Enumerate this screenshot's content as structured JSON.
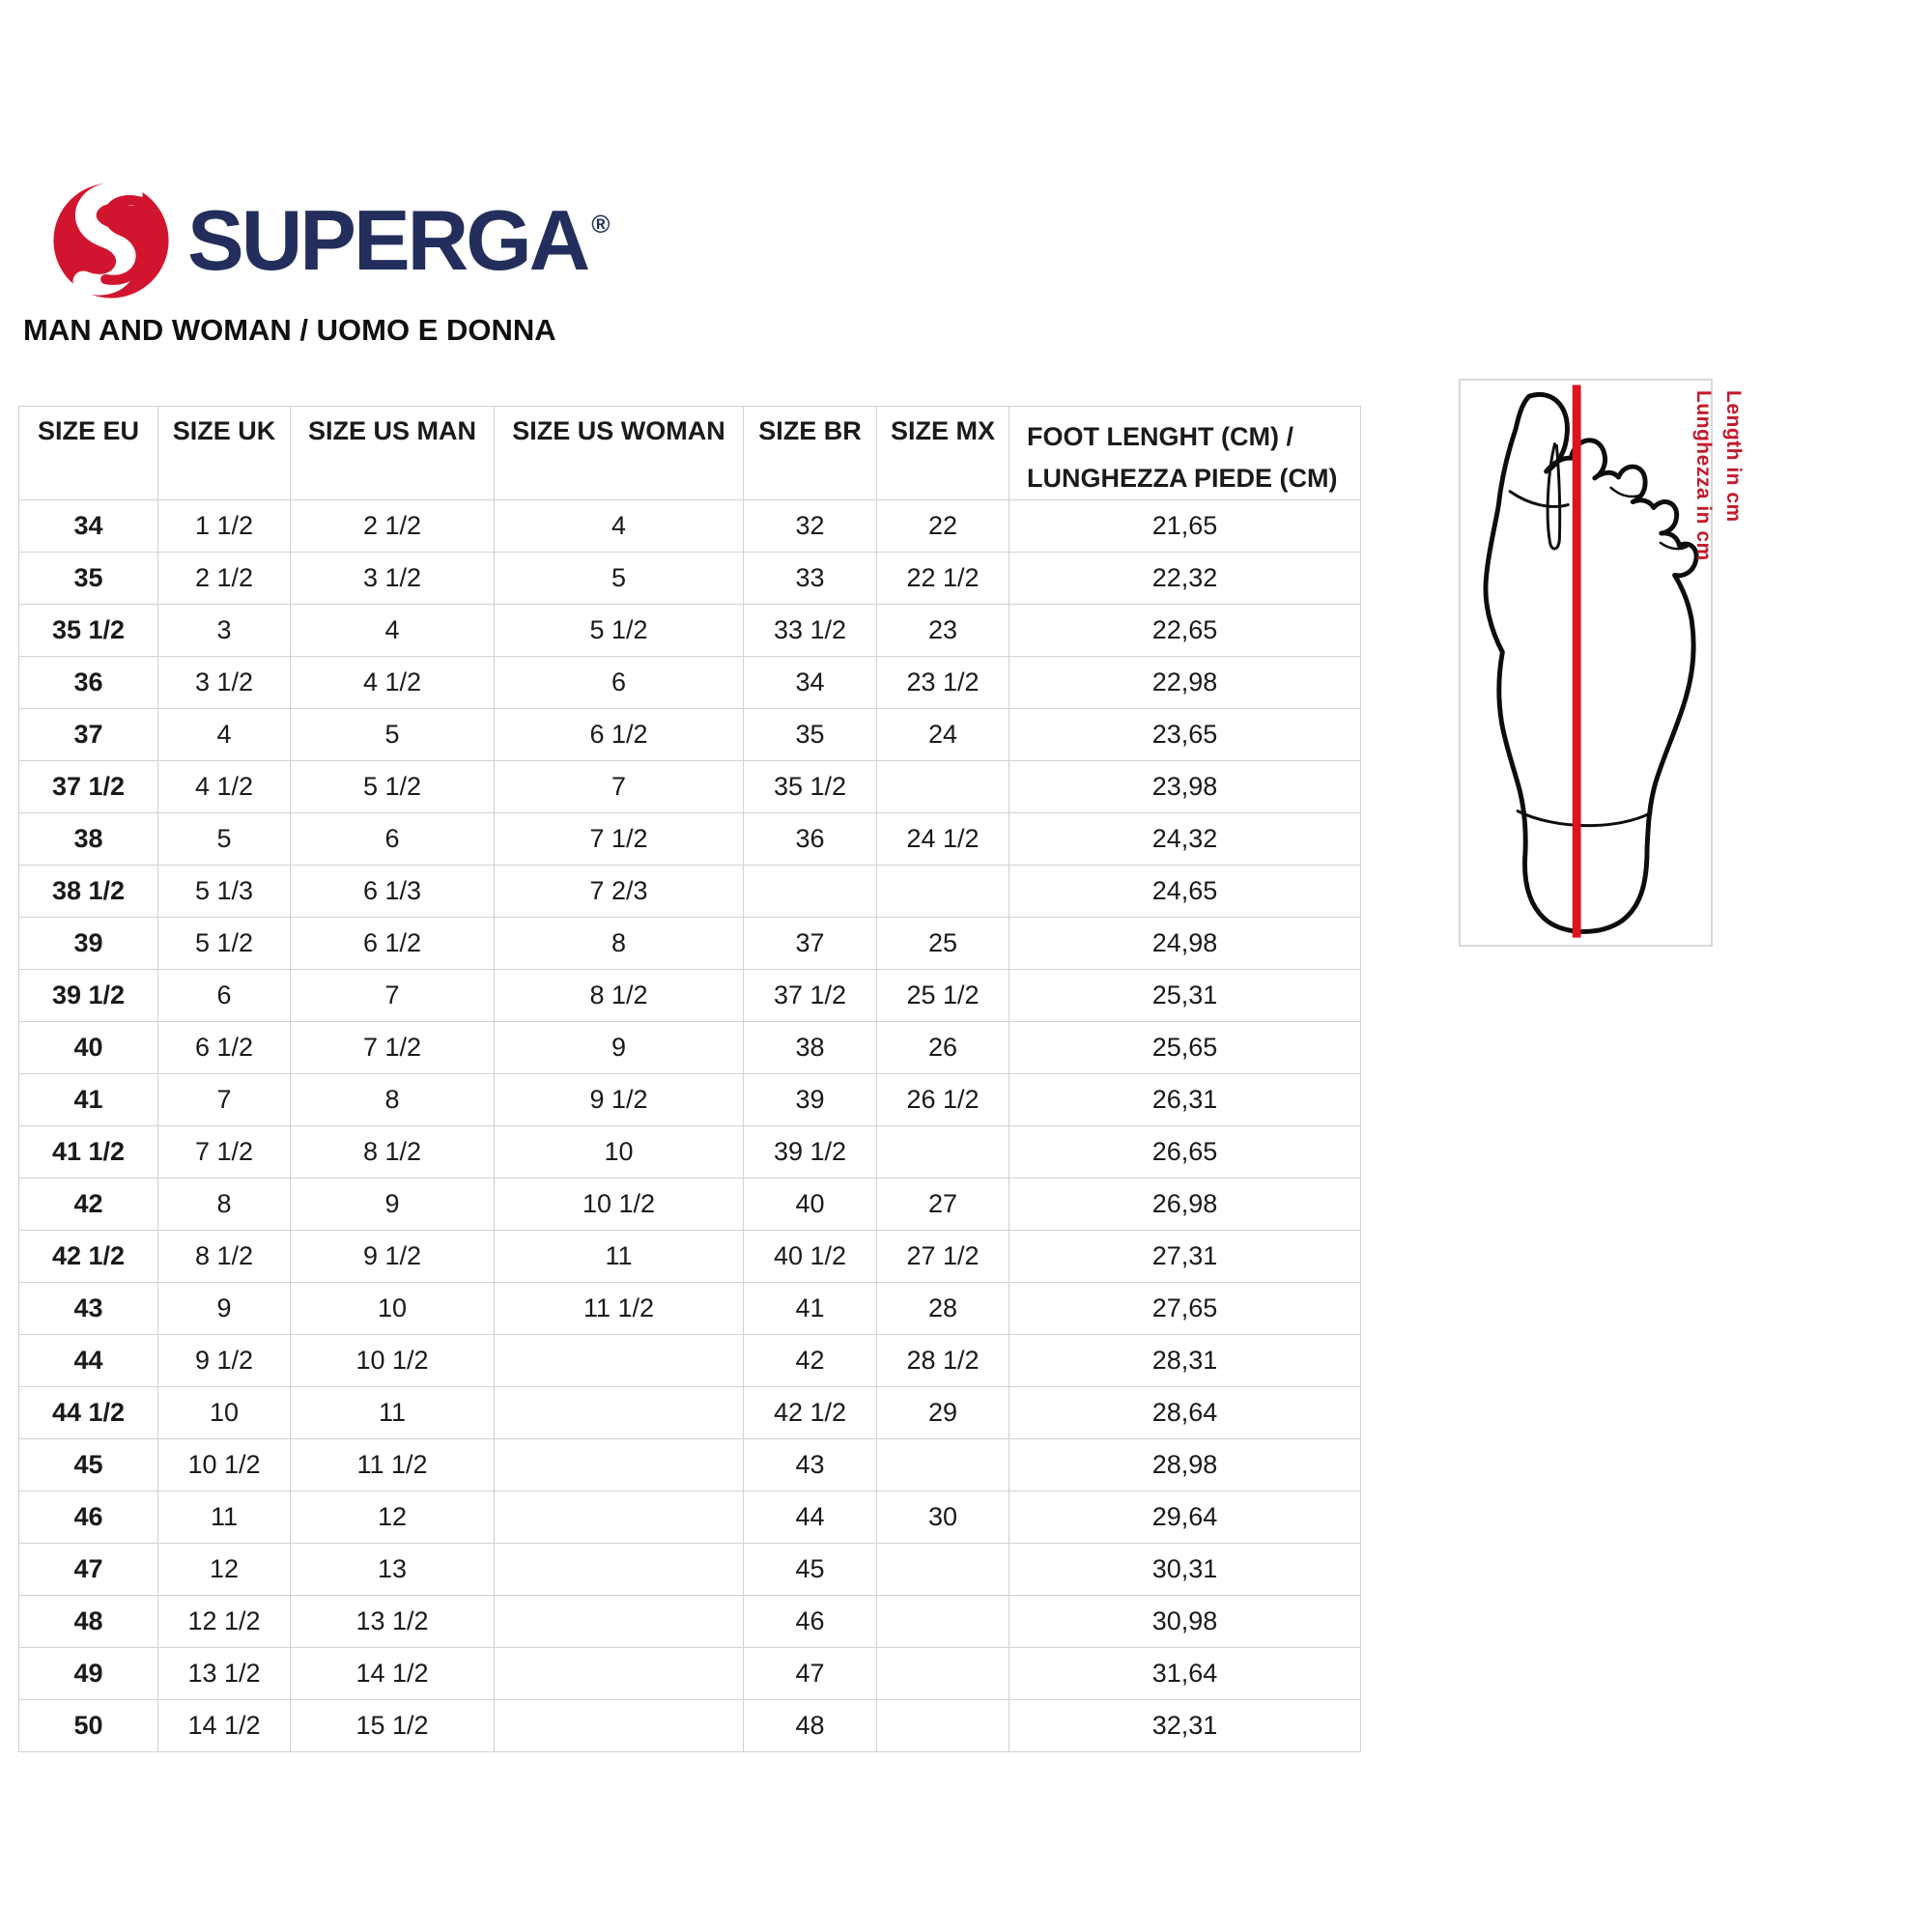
{
  "brand": {
    "name": "SUPERGA",
    "registered_mark": "®",
    "emblem_icon": "superga-s-ball-logo",
    "colors": {
      "red": "#d2152e",
      "navy": "#232e5c"
    }
  },
  "heading": "MAN AND WOMAN / UOMO E DONNA",
  "size_table": {
    "headers": [
      "SIZE EU",
      "SIZE UK",
      "SIZE US MAN",
      "SIZE US WOMAN",
      "SIZE BR",
      "SIZE MX"
    ],
    "last_header": {
      "line1": "FOOT LENGHT (CM) /",
      "line2": "LUNGHEZZA PIEDE (CM)"
    },
    "rows": [
      [
        "34",
        "1 1/2",
        "2 1/2",
        "4",
        "32",
        "22",
        "21,65"
      ],
      [
        "35",
        "2 1/2",
        "3 1/2",
        "5",
        "33",
        "22 1/2",
        "22,32"
      ],
      [
        "35 1/2",
        "3",
        "4",
        "5 1/2",
        "33 1/2",
        "23",
        "22,65"
      ],
      [
        "36",
        "3 1/2",
        "4 1/2",
        "6",
        "34",
        "23 1/2",
        "22,98"
      ],
      [
        "37",
        "4",
        "5",
        "6 1/2",
        "35",
        "24",
        "23,65"
      ],
      [
        "37 1/2",
        "4 1/2",
        "5 1/2",
        "7",
        "35 1/2",
        "",
        "23,98"
      ],
      [
        "38",
        "5",
        "6",
        "7 1/2",
        "36",
        "24 1/2",
        "24,32"
      ],
      [
        "38 1/2",
        "5 1/3",
        "6 1/3",
        "7 2/3",
        "",
        "",
        "24,65"
      ],
      [
        "39",
        "5 1/2",
        "6 1/2",
        "8",
        "37",
        "25",
        "24,98"
      ],
      [
        "39 1/2",
        "6",
        "7",
        "8 1/2",
        "37 1/2",
        "25 1/2",
        "25,31"
      ],
      [
        "40",
        "6 1/2",
        "7 1/2",
        "9",
        "38",
        "26",
        "25,65"
      ],
      [
        "41",
        "7",
        "8",
        "9 1/2",
        "39",
        "26 1/2",
        "26,31"
      ],
      [
        "41 1/2",
        "7 1/2",
        "8 1/2",
        "10",
        "39 1/2",
        "",
        "26,65"
      ],
      [
        "42",
        "8",
        "9",
        "10 1/2",
        "40",
        "27",
        "26,98"
      ],
      [
        "42 1/2",
        "8 1/2",
        "9 1/2",
        "11",
        "40 1/2",
        "27 1/2",
        "27,31"
      ],
      [
        "43",
        "9",
        "10",
        "11 1/2",
        "41",
        "28",
        "27,65"
      ],
      [
        "44",
        "9 1/2",
        "10 1/2",
        "",
        "42",
        "28 1/2",
        "28,31"
      ],
      [
        "44 1/2",
        "10",
        "11",
        "",
        "42 1/2",
        "29",
        "28,64"
      ],
      [
        "45",
        "10 1/2",
        "11 1/2",
        "",
        "43",
        "",
        "28,98"
      ],
      [
        "46",
        "11",
        "12",
        "",
        "44",
        "30",
        "29,64"
      ],
      [
        "47",
        "12",
        "13",
        "",
        "45",
        "",
        "30,31"
      ],
      [
        "48",
        "12 1/2",
        "13 1/2",
        "",
        "46",
        "",
        "30,98"
      ],
      [
        "49",
        "13 1/2",
        "14 1/2",
        "",
        "47",
        "",
        "31,64"
      ],
      [
        "50",
        "14 1/2",
        "15 1/2",
        "",
        "48",
        "",
        "32,31"
      ]
    ]
  },
  "diagram": {
    "label_en": "Length in cm",
    "label_it": "Lunghezza in cm",
    "line_color": "#dd1420",
    "label_color": "#c31a2b",
    "figure": "foot-sole-outline-with-measuring-line"
  }
}
